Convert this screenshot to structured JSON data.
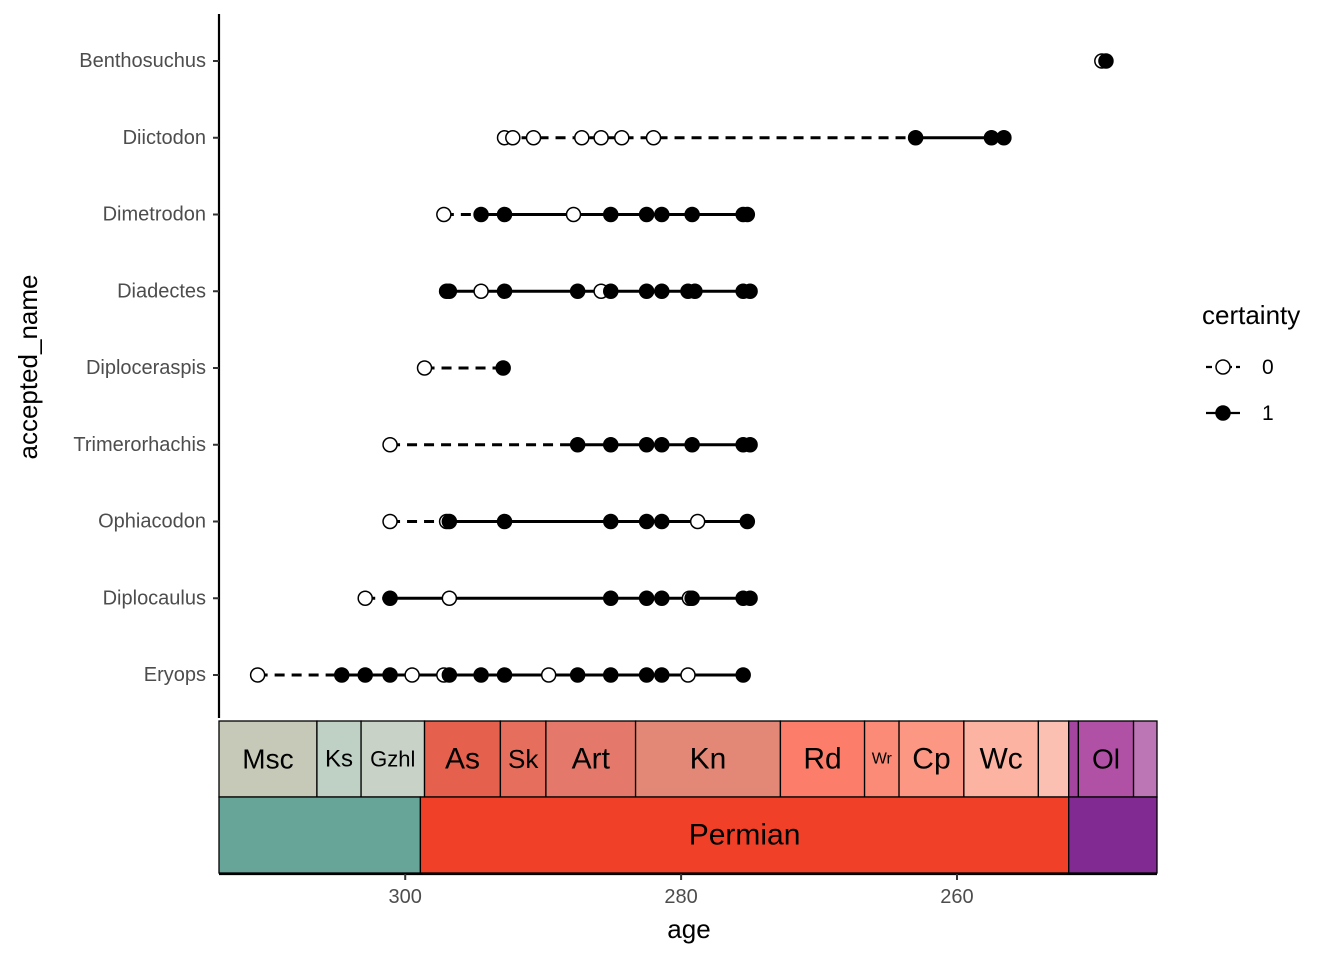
{
  "chart_data": {
    "type": "scatter",
    "xlabel": "age",
    "ylabel": "accepted_name",
    "x_reversed": true,
    "xlim": [
      313.5,
      245.5
    ],
    "x_ticks": [
      300,
      280,
      260
    ],
    "categories": [
      "Benthosuchus",
      "Diictodon",
      "Dimetrodon",
      "Diadectes",
      "Diploceraspis",
      "Trimerorhachis",
      "Ophiacodon",
      "Diplocaulus",
      "Eryops"
    ],
    "legend": {
      "title": "certainty",
      "entries": [
        "0",
        "1"
      ],
      "placement": "right"
    },
    "series": [
      {
        "name": "0",
        "style": "open-circle",
        "points": [
          {
            "taxon": "Benthosuchus",
            "ages": [
              249.5
            ]
          },
          {
            "taxon": "Diictodon",
            "ages": [
              292.8,
              292.2,
              290.7,
              287.2,
              285.8,
              284.3,
              282.0
            ]
          },
          {
            "taxon": "Dimetrodon",
            "ages": [
              297.2,
              287.8
            ]
          },
          {
            "taxon": "Diadectes",
            "ages": [
              294.5,
              285.8
            ]
          },
          {
            "taxon": "Diploceraspis",
            "ages": [
              298.6
            ]
          },
          {
            "taxon": "Trimerorhachis",
            "ages": [
              301.1
            ]
          },
          {
            "taxon": "Ophiacodon",
            "ages": [
              301.1,
              297.0,
              278.8
            ]
          },
          {
            "taxon": "Diplocaulus",
            "ages": [
              302.9,
              296.8,
              279.4
            ]
          },
          {
            "taxon": "Eryops",
            "ages": [
              310.7,
              299.5,
              297.2,
              289.6,
              279.5
            ]
          }
        ]
      },
      {
        "name": "1",
        "style": "filled-circle",
        "points": [
          {
            "taxon": "Benthosuchus",
            "ages": [
              249.2
            ]
          },
          {
            "taxon": "Diictodon",
            "ages": [
              263.0,
              257.5,
              256.6
            ]
          },
          {
            "taxon": "Dimetrodon",
            "ages": [
              294.5,
              292.8,
              285.1,
              282.5,
              281.4,
              279.2,
              275.5,
              275.2
            ]
          },
          {
            "taxon": "Diadectes",
            "ages": [
              297.0,
              296.8,
              292.8,
              287.5,
              285.1,
              282.5,
              281.4,
              279.5,
              279.0,
              275.5,
              275.0
            ]
          },
          {
            "taxon": "Diploceraspis",
            "ages": [
              292.9
            ]
          },
          {
            "taxon": "Trimerorhachis",
            "ages": [
              287.5,
              285.1,
              282.5,
              281.4,
              279.2,
              275.5,
              275.0
            ]
          },
          {
            "taxon": "Ophiacodon",
            "ages": [
              296.8,
              292.8,
              285.1,
              282.5,
              281.4,
              275.2
            ]
          },
          {
            "taxon": "Diplocaulus",
            "ages": [
              301.1,
              285.1,
              282.5,
              281.4,
              279.2,
              275.5,
              275.0
            ]
          },
          {
            "taxon": "Eryops",
            "ages": [
              304.6,
              302.9,
              301.1,
              296.8,
              294.5,
              292.8,
              287.5,
              285.1,
              282.5,
              281.4,
              275.5
            ]
          }
        ]
      }
    ],
    "segments": [
      {
        "taxon": "Benthosuchus",
        "dashed": [],
        "solid": []
      },
      {
        "taxon": "Diictodon",
        "dashed": [
          292.8,
          263.0
        ],
        "solid": [
          263.0,
          256.6
        ]
      },
      {
        "taxon": "Dimetrodon",
        "dashed": [
          297.2,
          294.5
        ],
        "solid": [
          294.5,
          275.2
        ]
      },
      {
        "taxon": "Diadectes",
        "dashed": [],
        "solid": [
          297.0,
          275.0
        ]
      },
      {
        "taxon": "Diploceraspis",
        "dashed": [
          298.6,
          292.9
        ],
        "solid": []
      },
      {
        "taxon": "Trimerorhachis",
        "dashed": [
          301.1,
          287.5
        ],
        "solid": [
          287.5,
          275.0
        ]
      },
      {
        "taxon": "Ophiacodon",
        "dashed": [
          301.1,
          296.8
        ],
        "solid": [
          296.8,
          275.2
        ]
      },
      {
        "taxon": "Diplocaulus",
        "dashed": [
          302.9,
          301.1
        ],
        "solid": [
          301.1,
          275.0
        ]
      },
      {
        "taxon": "Eryops",
        "dashed": [
          310.7,
          304.6
        ],
        "solid": [
          304.6,
          275.5
        ]
      }
    ],
    "time_scale": {
      "stages": [
        {
          "label": "Msc",
          "start": 313.5,
          "end": 306.4,
          "color": "#c6c9b7",
          "font": 28
        },
        {
          "label": "Ks",
          "start": 306.4,
          "end": 303.2,
          "color": "#bfd0c5",
          "font": 24
        },
        {
          "label": "Gzhl",
          "start": 303.2,
          "end": 298.6,
          "color": "#c9d2c6",
          "font": 22
        },
        {
          "label": "As",
          "start": 298.6,
          "end": 293.1,
          "color": "#e5604d",
          "font": 30
        },
        {
          "label": "Sk",
          "start": 293.1,
          "end": 289.8,
          "color": "#e56e5c",
          "font": 26
        },
        {
          "label": "Art",
          "start": 289.8,
          "end": 283.3,
          "color": "#e4786a",
          "font": 30
        },
        {
          "label": "Kn",
          "start": 283.3,
          "end": 272.8,
          "color": "#e38776",
          "font": 30
        },
        {
          "label": "Rd",
          "start": 272.8,
          "end": 266.7,
          "color": "#fb7d6a",
          "font": 30
        },
        {
          "label": "Wr",
          "start": 266.7,
          "end": 264.2,
          "color": "#fb8a76",
          "font": 16
        },
        {
          "label": "Cp",
          "start": 264.2,
          "end": 259.5,
          "color": "#fb9782",
          "font": 30
        },
        {
          "label": "Wc",
          "start": 259.5,
          "end": 254.1,
          "color": "#fcb3a1",
          "font": 30
        },
        {
          "label": "",
          "start": 254.1,
          "end": 251.9,
          "color": "#fcc0b2",
          "font": 20
        },
        {
          "label": "",
          "start": 251.9,
          "end": 251.2,
          "color": "#a4469f",
          "font": 20
        },
        {
          "label": "Ol",
          "start": 251.2,
          "end": 247.2,
          "color": "#b051a5",
          "font": 28
        },
        {
          "label": "",
          "start": 247.2,
          "end": 245.5,
          "color": "#bc75b5",
          "font": 20
        }
      ],
      "periods": [
        {
          "label": "",
          "start": 313.5,
          "end": 298.9,
          "color": "#67a599"
        },
        {
          "label": "Permian",
          "start": 298.9,
          "end": 251.9,
          "color": "#f04028",
          "text_color": "#ffffff"
        },
        {
          "label": "",
          "start": 251.9,
          "end": 245.5,
          "color": "#812b92"
        }
      ]
    }
  }
}
